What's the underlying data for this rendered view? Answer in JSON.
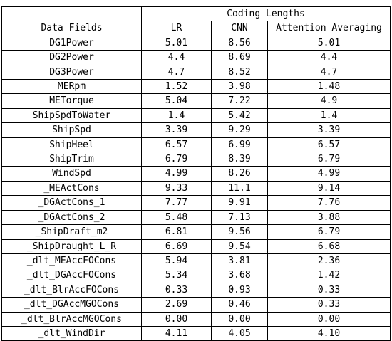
{
  "header": {
    "group_label": "Coding Lengths",
    "field_label": "Data Fields",
    "columns": [
      "LR",
      "CNN",
      "Attention Averaging"
    ]
  },
  "rows": [
    {
      "field": "DG1Power",
      "values": [
        "5.01",
        "8.56",
        "5.01"
      ]
    },
    {
      "field": "DG2Power",
      "values": [
        "4.4",
        "8.69",
        "4.4"
      ]
    },
    {
      "field": "DG3Power",
      "values": [
        "4.7",
        "8.52",
        "4.7"
      ]
    },
    {
      "field": "MERpm",
      "values": [
        "1.52",
        "3.98",
        "1.48"
      ]
    },
    {
      "field": "METorque",
      "values": [
        "5.04",
        "7.22",
        "4.9"
      ]
    },
    {
      "field": "ShipSpdToWater",
      "values": [
        "1.4",
        "5.42",
        "1.4"
      ]
    },
    {
      "field": "ShipSpd",
      "values": [
        "3.39",
        "9.29",
        "3.39"
      ]
    },
    {
      "field": "ShipHeel",
      "values": [
        "6.57",
        "6.99",
        "6.57"
      ]
    },
    {
      "field": "ShipTrim",
      "values": [
        "6.79",
        "8.39",
        "6.79"
      ]
    },
    {
      "field": "WindSpd",
      "values": [
        "4.99",
        "8.26",
        "4.99"
      ]
    },
    {
      "field": "_MEActCons",
      "values": [
        "9.33",
        "11.1",
        "9.14"
      ]
    },
    {
      "field": "_DGActCons_1",
      "values": [
        "7.77",
        "9.91",
        "7.76"
      ]
    },
    {
      "field": "_DGActCons_2",
      "values": [
        "5.48",
        "7.13",
        "3.88"
      ]
    },
    {
      "field": "_ShipDraft_m2",
      "values": [
        "6.81",
        "9.56",
        "6.79"
      ]
    },
    {
      "field": "_ShipDraught_L_R",
      "values": [
        "6.69",
        "9.54",
        "6.68"
      ]
    },
    {
      "field": "_dlt_MEAccFOCons",
      "values": [
        "5.94",
        "3.81",
        "2.36"
      ]
    },
    {
      "field": "_dlt_DGAccFOCons",
      "values": [
        "5.34",
        "3.68",
        "1.42"
      ]
    },
    {
      "field": "_dlt_BlrAccFOCons",
      "values": [
        "0.33",
        "0.93",
        "0.33"
      ]
    },
    {
      "field": "_dlt_DGAccMGOCons",
      "values": [
        "2.69",
        "0.46",
        "0.33"
      ]
    },
    {
      "field": "_dlt_BlrAccMGOCons",
      "values": [
        "0.00",
        "0.00",
        "0.00"
      ]
    },
    {
      "field": "_dlt_WindDir",
      "values": [
        "4.11",
        "4.05",
        "4.10"
      ]
    }
  ]
}
